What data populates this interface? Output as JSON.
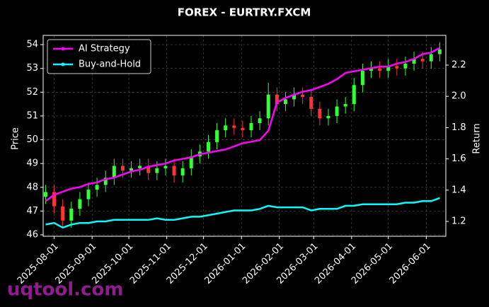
{
  "chart_data": {
    "type": "candlestick",
    "title": "FOREX - EURTRY.FXCM",
    "ylabel": "Price",
    "y2label": "Return",
    "watermark": "uqtool.com",
    "x": [
      "2025-07-25",
      "2025-08-01",
      "2025-08-08",
      "2025-08-15",
      "2025-08-22",
      "2025-08-29",
      "2025-09-05",
      "2025-09-12",
      "2025-09-19",
      "2025-09-26",
      "2025-10-03",
      "2025-10-10",
      "2025-10-17",
      "2025-10-24",
      "2025-10-31",
      "2025-11-07",
      "2025-11-14",
      "2025-11-21",
      "2025-11-28",
      "2025-12-05",
      "2025-12-12",
      "2025-12-19",
      "2025-12-26",
      "2026-01-02",
      "2026-01-09",
      "2026-01-16",
      "2026-01-23",
      "2026-01-30",
      "2026-02-06",
      "2026-02-13",
      "2026-02-20",
      "2026-02-27",
      "2026-03-06",
      "2026-03-13",
      "2026-03-20",
      "2026-03-27",
      "2026-04-03",
      "2026-04-10",
      "2026-04-17",
      "2026-04-24",
      "2026-05-01",
      "2026-05-08",
      "2026-05-15",
      "2026-05-22",
      "2026-05-29",
      "2026-06-05",
      "2026-06-12"
    ],
    "open": [
      47.6,
      47.8,
      47.2,
      46.6,
      47.1,
      47.5,
      47.9,
      48.1,
      48.4,
      48.9,
      48.7,
      48.8,
      48.9,
      48.6,
      48.8,
      48.9,
      48.5,
      48.8,
      49.3,
      49.5,
      49.9,
      50.4,
      50.6,
      50.5,
      50.4,
      50.7,
      50.9,
      51.9,
      51.5,
      51.7,
      51.9,
      51.8,
      51.3,
      50.9,
      51.0,
      51.4,
      51.5,
      52.3,
      52.9,
      53.0,
      52.9,
      53.1,
      53.0,
      53.2,
      53.4,
      53.3,
      53.6
    ],
    "high": [
      48.1,
      48.1,
      47.5,
      47.4,
      47.8,
      48.2,
      48.4,
      48.7,
      49.2,
      49.2,
      49.1,
      49.2,
      49.2,
      49.1,
      49.2,
      49.2,
      49.1,
      49.6,
      49.8,
      50.2,
      50.7,
      50.9,
      50.9,
      50.8,
      51.0,
      51.2,
      52.4,
      52.2,
      52.0,
      52.2,
      52.2,
      52.1,
      51.6,
      51.3,
      51.7,
      51.8,
      52.6,
      53.2,
      53.3,
      53.3,
      53.4,
      53.4,
      53.5,
      53.7,
      53.7,
      53.9,
      54.1
    ],
    "low": [
      47.3,
      46.9,
      46.3,
      46.3,
      46.8,
      47.2,
      47.6,
      47.8,
      48.1,
      48.4,
      48.4,
      48.5,
      48.3,
      48.3,
      48.5,
      48.2,
      48.2,
      48.5,
      49.0,
      49.2,
      49.6,
      50.1,
      50.2,
      50.1,
      50.1,
      50.4,
      50.6,
      51.2,
      51.2,
      51.4,
      51.5,
      51.0,
      50.6,
      50.6,
      50.7,
      51.1,
      51.2,
      52.0,
      52.6,
      52.6,
      52.6,
      52.7,
      52.7,
      52.9,
      53.0,
      53.0,
      53.3
    ],
    "close": [
      47.8,
      47.2,
      46.6,
      47.1,
      47.5,
      47.9,
      48.1,
      48.4,
      48.9,
      48.7,
      48.8,
      48.9,
      48.6,
      48.8,
      48.9,
      48.5,
      48.8,
      49.3,
      49.5,
      49.9,
      50.4,
      50.6,
      50.5,
      50.4,
      50.7,
      50.9,
      51.9,
      51.5,
      51.7,
      51.9,
      51.8,
      51.3,
      50.9,
      51.0,
      51.4,
      51.5,
      52.3,
      52.9,
      53.0,
      52.9,
      53.1,
      53.0,
      53.2,
      53.4,
      53.3,
      53.6,
      53.8
    ],
    "up_color": "#33ff33",
    "down_color": "#ff3333",
    "series": [
      {
        "name": "AI Strategy",
        "color": "#ff00ff",
        "axis": "y2",
        "values": [
          1.33,
          1.37,
          1.39,
          1.41,
          1.42,
          1.44,
          1.45,
          1.47,
          1.48,
          1.5,
          1.52,
          1.53,
          1.55,
          1.56,
          1.57,
          1.59,
          1.6,
          1.61,
          1.63,
          1.64,
          1.65,
          1.66,
          1.68,
          1.7,
          1.71,
          1.72,
          1.78,
          1.96,
          1.99,
          2.01,
          2.03,
          2.04,
          2.06,
          2.08,
          2.11,
          2.15,
          2.16,
          2.17,
          2.18,
          2.19,
          2.19,
          2.21,
          2.22,
          2.24,
          2.27,
          2.28,
          2.31
        ]
      },
      {
        "name": "Buy-and-Hold",
        "color": "#00ffff",
        "axis": "y2",
        "values": [
          1.18,
          1.19,
          1.16,
          1.18,
          1.19,
          1.19,
          1.2,
          1.2,
          1.21,
          1.21,
          1.21,
          1.21,
          1.21,
          1.22,
          1.21,
          1.21,
          1.22,
          1.23,
          1.23,
          1.24,
          1.25,
          1.26,
          1.27,
          1.27,
          1.27,
          1.28,
          1.3,
          1.29,
          1.29,
          1.29,
          1.29,
          1.27,
          1.28,
          1.28,
          1.28,
          1.3,
          1.3,
          1.31,
          1.31,
          1.31,
          1.31,
          1.31,
          1.32,
          1.32,
          1.33,
          1.33,
          1.35
        ]
      }
    ],
    "xlim": [
      "2025-07-23",
      "2026-06-17"
    ],
    "xticks": [
      "2025-08-01",
      "2025-09-01",
      "2025-10-01",
      "2025-11-01",
      "2025-12-01",
      "2026-01-01",
      "2026-02-01",
      "2026-03-01",
      "2026-04-01",
      "2026-05-01",
      "2026-06-01"
    ],
    "ylim": [
      45.94,
      54.39
    ],
    "yticks": [
      46,
      47,
      48,
      49,
      50,
      51,
      52,
      53,
      54
    ],
    "y2lim": [
      1.105,
      2.39
    ],
    "y2ticks": [
      1.2,
      1.4,
      1.6,
      1.8,
      {
        "value": 2,
        "label": "2.0"
      },
      2.2
    ],
    "grid": true,
    "legend": "upper-left"
  }
}
